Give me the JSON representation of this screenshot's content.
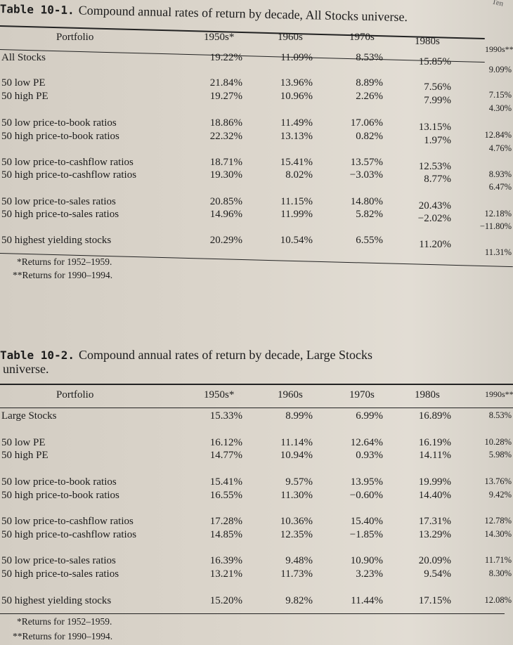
{
  "running_head": "Ten",
  "tables": [
    {
      "label": "Table 10-1.",
      "caption": "Compound annual rates of return by decade, All Stocks universe.",
      "caption_line2": "",
      "headers": [
        "Portfolio",
        "1950s*",
        "1960s",
        "1970s",
        "1980s",
        "1990s**"
      ],
      "rows": [
        {
          "label": "All Stocks",
          "values": [
            "19.22%",
            "11.09%",
            "8.53%",
            "15.85%",
            "9.09%"
          ]
        },
        {
          "label": "50 low PE",
          "values": [
            "21.84%",
            "13.96%",
            "8.89%",
            "7.56%",
            "7.15%"
          ]
        },
        {
          "label": "50 high PE",
          "values": [
            "19.27%",
            "10.96%",
            "2.26%",
            "7.99%",
            "4.30%"
          ]
        },
        {
          "label": "50 low price-to-book ratios",
          "values": [
            "18.86%",
            "11.49%",
            "17.06%",
            "13.15%",
            "12.84%"
          ]
        },
        {
          "label": "50 high price-to-book ratios",
          "values": [
            "22.32%",
            "13.13%",
            "0.82%",
            "1.97%",
            "4.76%"
          ]
        },
        {
          "label": "50 low price-to-cashflow ratios",
          "values": [
            "18.71%",
            "15.41%",
            "13.57%",
            "12.53%",
            "8.93%"
          ]
        },
        {
          "label": "50 high price-to-cashflow ratios",
          "values": [
            "19.30%",
            "8.02%",
            "−3.03%",
            "8.77%",
            "6.47%"
          ]
        },
        {
          "label": "50 low price-to-sales ratios",
          "values": [
            "20.85%",
            "11.15%",
            "14.80%",
            "20.43%",
            "12.18%"
          ]
        },
        {
          "label": "50 high price-to-sales ratios",
          "values": [
            "14.96%",
            "11.99%",
            "5.82%",
            "−2.02%",
            "−11.80%"
          ]
        },
        {
          "label": "50 highest yielding stocks",
          "values": [
            "20.29%",
            "10.54%",
            "6.55%",
            "11.20%",
            "11.31%"
          ]
        }
      ],
      "footnotes": [
        "*Returns for 1952–1959.",
        "**Returns for 1990–1994."
      ]
    },
    {
      "label": "Table 10-2.",
      "caption": "Compound annual rates of return by decade, Large Stocks",
      "caption_line2": "universe.",
      "headers": [
        "Portfolio",
        "1950s*",
        "1960s",
        "1970s",
        "1980s",
        "1990s**"
      ],
      "rows": [
        {
          "label": "Large Stocks",
          "values": [
            "15.33%",
            "8.99%",
            "6.99%",
            "16.89%",
            "8.53%"
          ]
        },
        {
          "label": "50 low PE",
          "values": [
            "16.12%",
            "11.14%",
            "12.64%",
            "16.19%",
            "10.28%"
          ]
        },
        {
          "label": "50 high PE",
          "values": [
            "14.77%",
            "10.94%",
            "0.93%",
            "14.11%",
            "5.98%"
          ]
        },
        {
          "label": "50 low price-to-book ratios",
          "values": [
            "15.41%",
            "9.57%",
            "13.95%",
            "19.99%",
            "13.76%"
          ]
        },
        {
          "label": "50 high price-to-book ratios",
          "values": [
            "16.55%",
            "11.30%",
            "−0.60%",
            "14.40%",
            "9.42%"
          ]
        },
        {
          "label": "50 low price-to-cashflow ratios",
          "values": [
            "17.28%",
            "10.36%",
            "15.40%",
            "17.31%",
            "12.78%"
          ]
        },
        {
          "label": "50 high price-to-cashflow ratios",
          "values": [
            "14.85%",
            "12.35%",
            "−1.85%",
            "13.29%",
            "14.30%"
          ]
        },
        {
          "label": "50 low price-to-sales ratios",
          "values": [
            "16.39%",
            "9.48%",
            "10.90%",
            "20.09%",
            "11.71%"
          ]
        },
        {
          "label": "50 high price-to-sales ratios",
          "values": [
            "13.21%",
            "11.73%",
            "3.23%",
            "9.54%",
            "8.30%"
          ]
        },
        {
          "label": "50 highest yielding stocks",
          "values": [
            "15.20%",
            "9.82%",
            "11.44%",
            "17.15%",
            "12.08%"
          ]
        }
      ],
      "footnotes": [
        "*Returns for 1952–1959.",
        "**Returns for 1990–1994."
      ]
    }
  ]
}
